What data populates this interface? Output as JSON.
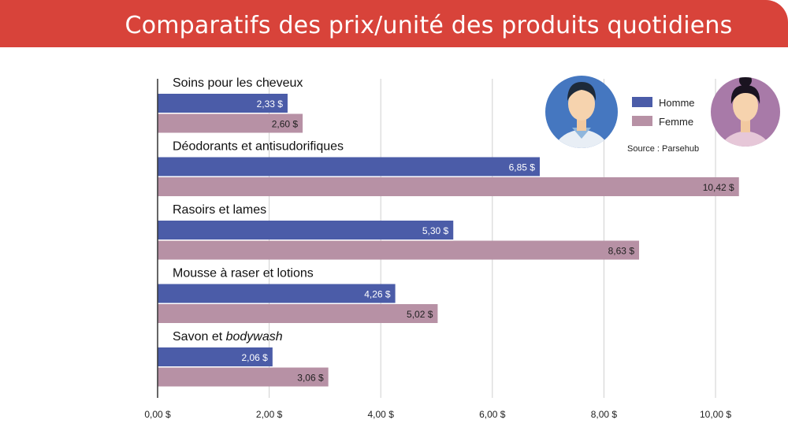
{
  "title": "Comparatifs des prix/unité des produits quotidiens",
  "source": "Source : Parsehub",
  "colors": {
    "banner": "#d8433a",
    "homme": "#4b5ca8",
    "femme": "#b791a5"
  },
  "chart_data": {
    "type": "bar",
    "orientation": "horizontal",
    "categories": [
      "Soins pour les cheveux",
      "Déodorants et antisudorifiques",
      "Rasoirs et lames",
      "Mousse à raser et lotions",
      "Savon et bodywash"
    ],
    "series": [
      {
        "name": "Homme",
        "values": [
          2.33,
          6.85,
          5.3,
          4.26,
          2.06
        ],
        "labels": [
          "2,33 $",
          "6,85 $",
          "5,30 $",
          "4,26 $",
          "2,06 $"
        ]
      },
      {
        "name": "Femme",
        "values": [
          2.6,
          10.42,
          8.63,
          5.02,
          3.06
        ],
        "labels": [
          "2,60 $",
          "10,42 $",
          "8,63 $",
          "5,02 $",
          "3,06 $"
        ]
      }
    ],
    "xlim": [
      0,
      10.5
    ],
    "xticks": [
      0,
      2,
      4,
      6,
      8,
      10
    ],
    "xtick_labels": [
      "0,00 $",
      "2,00 $",
      "4,00 $",
      "6,00 $",
      "8,00 $",
      "10,00 $"
    ],
    "grid": true,
    "legend": "top-right",
    "title": "Comparatifs des prix/unité des produits quotidiens"
  }
}
